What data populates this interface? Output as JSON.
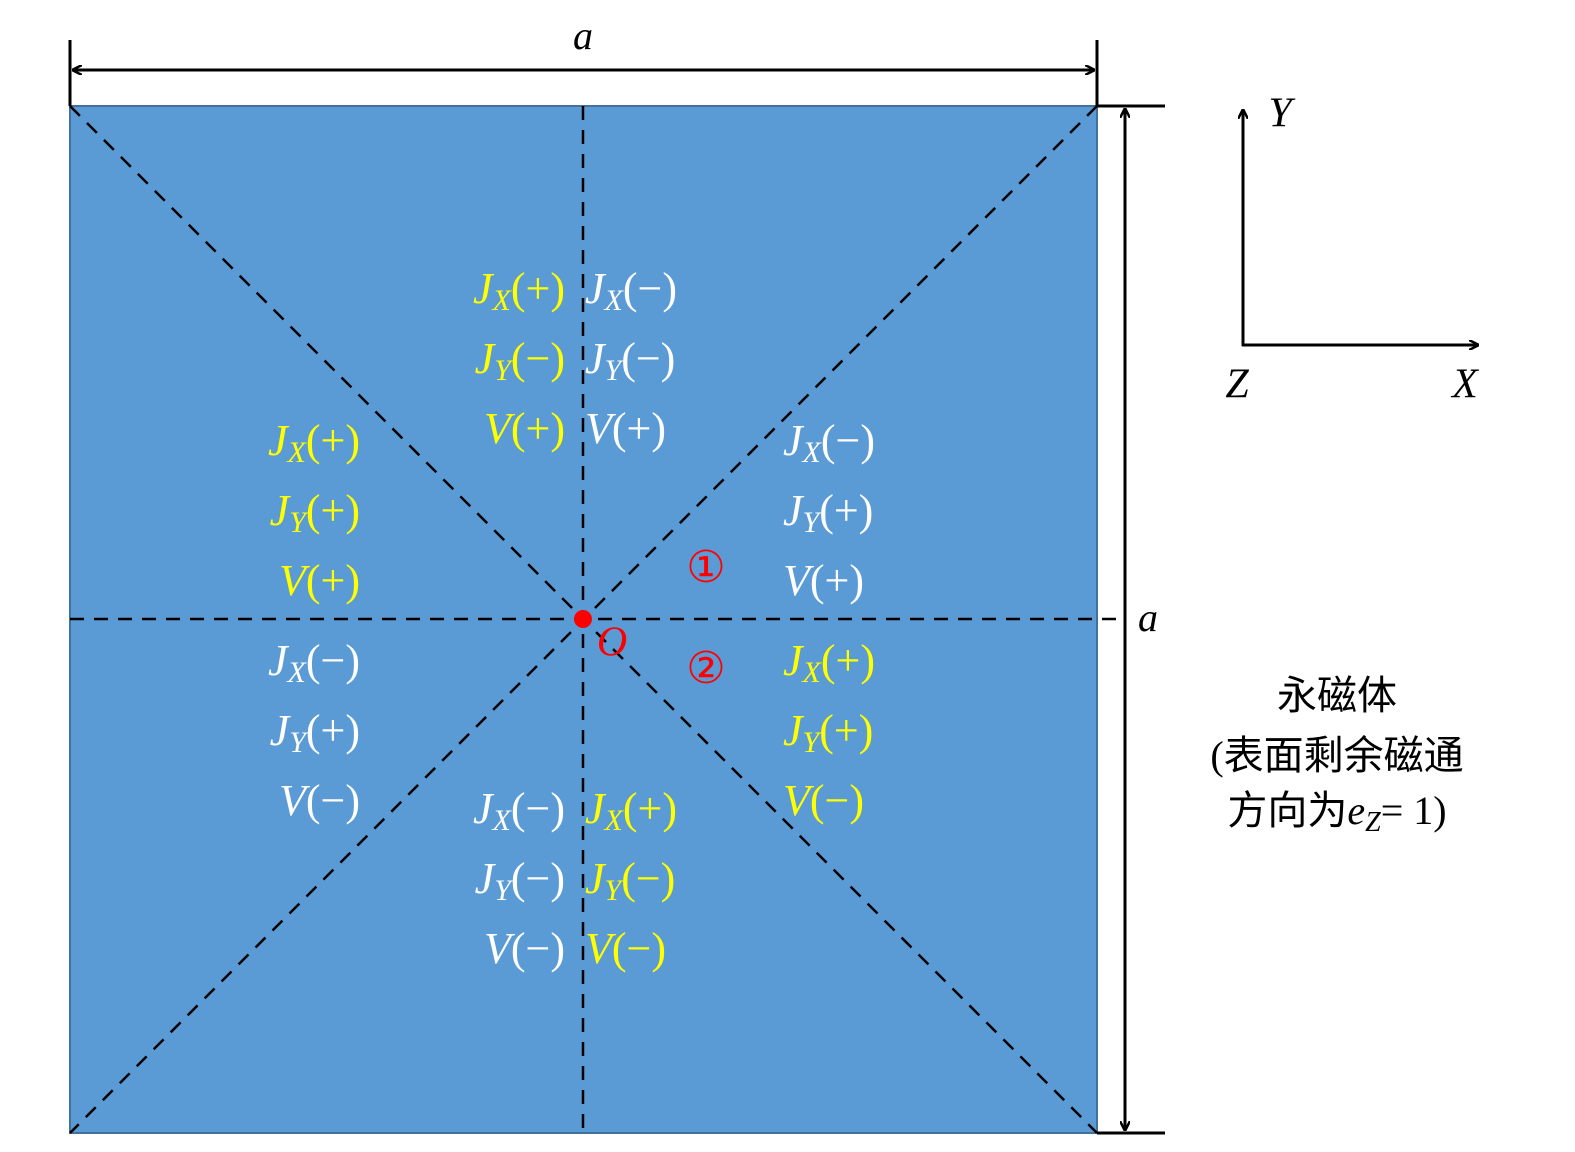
{
  "dimension_top": "a",
  "dimension_right": "a",
  "origin_label": "O",
  "region_marks": [
    "①",
    "②"
  ],
  "axes": {
    "y": "Y",
    "x": "X",
    "z": "Z"
  },
  "caption": {
    "line1": "永磁体",
    "line2": "(表面剩余磁通",
    "line3": {
      "prefix": "方向为",
      "symbol": "e",
      "sub": "Z",
      "suffix": "=  1)"
    }
  },
  "regions": [
    {
      "color": "#ffff00",
      "lines": [
        {
          "symbol": "J",
          "sub": "X",
          "sign": "(+)"
        },
        {
          "symbol": "J",
          "sub": "Y",
          "sign": "(−)"
        },
        {
          "symbol": "V",
          "sign": "(+)"
        }
      ]
    },
    {
      "color": "#ffffff",
      "lines": [
        {
          "symbol": "J",
          "sub": "X",
          "sign": "(−)"
        },
        {
          "symbol": "J",
          "sub": "Y",
          "sign": "(−)"
        },
        {
          "symbol": "V",
          "sign": "(+)"
        }
      ]
    },
    {
      "color": "#ffff00",
      "lines": [
        {
          "symbol": "J",
          "sub": "X",
          "sign": "(+)"
        },
        {
          "symbol": "J",
          "sub": "Y",
          "sign": "(+)"
        },
        {
          "symbol": "V",
          "sign": "(+)"
        }
      ]
    },
    {
      "color": "#ffffff",
      "lines": [
        {
          "symbol": "J",
          "sub": "X",
          "sign": "(−)"
        },
        {
          "symbol": "J",
          "sub": "Y",
          "sign": "(+)"
        },
        {
          "symbol": "V",
          "sign": "(+)"
        }
      ]
    },
    {
      "color": "#ffffff",
      "lines": [
        {
          "symbol": "J",
          "sub": "X",
          "sign": "(−)"
        },
        {
          "symbol": "J",
          "sub": "Y",
          "sign": "(+)"
        },
        {
          "symbol": "V",
          "sign": "(−)"
        }
      ]
    },
    {
      "color": "#ffff00",
      "lines": [
        {
          "symbol": "J",
          "sub": "X",
          "sign": "(+)"
        },
        {
          "symbol": "J",
          "sub": "Y",
          "sign": "(+)"
        },
        {
          "symbol": "V",
          "sign": "(−)"
        }
      ]
    },
    {
      "color": "#ffffff",
      "lines": [
        {
          "symbol": "J",
          "sub": "X",
          "sign": "(−)"
        },
        {
          "symbol": "J",
          "sub": "Y",
          "sign": "(−)"
        },
        {
          "symbol": "V",
          "sign": "(−)"
        }
      ]
    },
    {
      "color": "#ffff00",
      "lines": [
        {
          "symbol": "J",
          "sub": "X",
          "sign": "(+)"
        },
        {
          "symbol": "J",
          "sub": "Y",
          "sign": "(−)"
        },
        {
          "symbol": "V",
          "sign": "(−)"
        }
      ]
    }
  ]
}
